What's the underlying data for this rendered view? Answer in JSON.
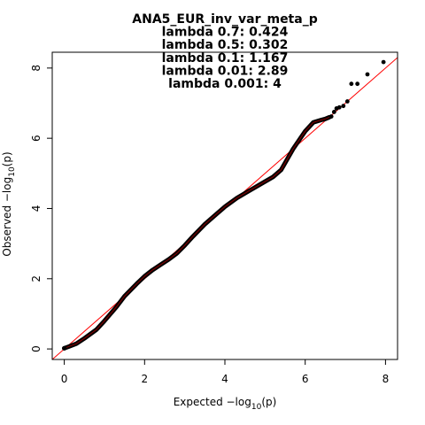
{
  "chart_data": {
    "type": "scatter",
    "title_lines": [
      "ANA5_EUR_inv_var_meta_p",
      "lambda 0.7: 0.424",
      "lambda 0.5: 0.302",
      "lambda 0.1: 1.167",
      "lambda 0.01: 2.89",
      "lambda 0.001: 4"
    ],
    "xlabel": {
      "prefix": "Expected  −log",
      "subscript": "10",
      "suffix": "(p)"
    },
    "ylabel": {
      "prefix": "Observed  −log",
      "subscript": "10",
      "suffix": "(p)"
    },
    "xlim": [
      -0.3,
      8.3
    ],
    "ylim": [
      -0.3,
      8.45
    ],
    "xticks": [
      0,
      2,
      4,
      6,
      8
    ],
    "yticks": [
      0,
      2,
      4,
      6,
      8
    ],
    "reference_line": {
      "slope": 1,
      "intercept": 0,
      "color": "#ff0000"
    },
    "point_color": "#000000",
    "trend_x": [
      0.0,
      0.1,
      0.3,
      0.5,
      0.8,
      1.0,
      1.3,
      1.5,
      1.8,
      2.0,
      2.2,
      2.4,
      2.6,
      2.8,
      3.0,
      3.2,
      3.5,
      3.8,
      4.0,
      4.3,
      4.6,
      4.9,
      5.2,
      5.4,
      5.55,
      5.7,
      5.85,
      6.0,
      6.2,
      6.4,
      6.5,
      6.6
    ],
    "trend_y": [
      0.02,
      0.06,
      0.15,
      0.3,
      0.55,
      0.8,
      1.2,
      1.5,
      1.85,
      2.07,
      2.25,
      2.4,
      2.55,
      2.72,
      2.95,
      3.2,
      3.55,
      3.85,
      4.05,
      4.3,
      4.5,
      4.7,
      4.9,
      5.1,
      5.4,
      5.7,
      5.95,
      6.2,
      6.45,
      6.52,
      6.55,
      6.6
    ],
    "tail_x": [
      6.65,
      6.72,
      6.78,
      6.85,
      6.95,
      7.05,
      7.15,
      7.3,
      7.55,
      7.95
    ],
    "tail_y": [
      6.62,
      6.75,
      6.85,
      6.88,
      6.92,
      7.05,
      7.55,
      7.55,
      7.82,
      8.17
    ]
  }
}
